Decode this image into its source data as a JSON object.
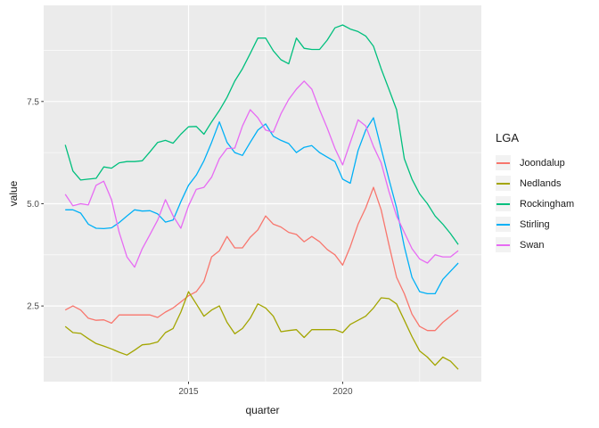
{
  "chart_data": {
    "type": "line",
    "title": "",
    "xlabel": "quarter",
    "ylabel": "value",
    "legend": {
      "title": "LGA",
      "position": "right"
    },
    "x_range": [
      2010.3,
      2024.5
    ],
    "y_range": [
      0.65,
      9.85
    ],
    "x_major_ticks": [
      {
        "label": "2015",
        "t": 2015
      },
      {
        "label": "2020",
        "t": 2020
      }
    ],
    "y_major_ticks": [
      {
        "label": "2.5",
        "v": 2.5
      },
      {
        "label": "5.0",
        "v": 5.0
      },
      {
        "label": "7.5",
        "v": 7.5
      }
    ],
    "x_minor": [
      2012.5,
      2017.5,
      2022.5
    ],
    "y_minor": [
      1.25,
      3.75,
      6.25,
      8.75
    ],
    "grid": true,
    "x_start": 2011.0,
    "x_step": 0.25,
    "series": [
      {
        "name": "Joondalup",
        "color": "#F8766D",
        "values": [
          2.4,
          2.5,
          2.4,
          2.2,
          2.15,
          2.16,
          2.08,
          2.28,
          2.28,
          2.28,
          2.28,
          2.28,
          2.22,
          2.35,
          2.45,
          2.6,
          2.75,
          2.85,
          3.1,
          3.7,
          3.85,
          4.2,
          3.92,
          3.92,
          4.18,
          4.36,
          4.7,
          4.5,
          4.43,
          4.3,
          4.25,
          4.07,
          4.2,
          4.07,
          3.88,
          3.75,
          3.5,
          3.95,
          4.5,
          4.9,
          5.4,
          4.85,
          4.0,
          3.2,
          2.8,
          2.3,
          2.0,
          1.9,
          1.9,
          2.1,
          2.25,
          2.4
        ]
      },
      {
        "name": "Nedlands",
        "color": "#A3A500",
        "values": [
          2.0,
          1.85,
          1.83,
          1.7,
          1.58,
          1.52,
          1.45,
          1.37,
          1.3,
          1.42,
          1.55,
          1.57,
          1.62,
          1.85,
          1.95,
          2.35,
          2.85,
          2.55,
          2.25,
          2.4,
          2.5,
          2.1,
          1.82,
          1.95,
          2.2,
          2.55,
          2.45,
          2.25,
          1.87,
          1.9,
          1.92,
          1.73,
          1.92,
          1.92,
          1.92,
          1.92,
          1.85,
          2.05,
          2.15,
          2.25,
          2.45,
          2.7,
          2.68,
          2.55,
          2.15,
          1.75,
          1.4,
          1.25,
          1.05,
          1.25,
          1.15,
          0.95
        ]
      },
      {
        "name": "Rockingham",
        "color": "#00BF7D",
        "values": [
          6.44,
          5.8,
          5.58,
          5.6,
          5.62,
          5.9,
          5.87,
          6.0,
          6.03,
          6.03,
          6.05,
          6.27,
          6.5,
          6.55,
          6.48,
          6.7,
          6.88,
          6.89,
          6.7,
          7.0,
          7.28,
          7.6,
          8.0,
          8.3,
          8.67,
          9.05,
          9.05,
          8.74,
          8.52,
          8.42,
          9.05,
          8.8,
          8.77,
          8.77,
          9.0,
          9.3,
          9.37,
          9.27,
          9.21,
          9.1,
          8.85,
          8.3,
          7.8,
          7.3,
          6.1,
          5.6,
          5.24,
          5.0,
          4.7,
          4.5,
          4.27,
          4.0
        ]
      },
      {
        "name": "Stirling",
        "color": "#00B0F6",
        "values": [
          4.85,
          4.85,
          4.77,
          4.5,
          4.4,
          4.39,
          4.41,
          4.54,
          4.7,
          4.85,
          4.82,
          4.83,
          4.75,
          4.55,
          4.6,
          5.05,
          5.45,
          5.7,
          6.05,
          6.5,
          7.0,
          6.5,
          6.25,
          6.18,
          6.5,
          6.8,
          6.95,
          6.65,
          6.55,
          6.47,
          6.25,
          6.38,
          6.42,
          6.25,
          6.14,
          6.03,
          5.6,
          5.5,
          6.3,
          6.8,
          7.1,
          6.35,
          5.6,
          4.9,
          3.95,
          3.2,
          2.85,
          2.8,
          2.8,
          3.15,
          3.35,
          3.55
        ]
      },
      {
        "name": "Swan",
        "color": "#E76BF3",
        "values": [
          5.23,
          4.95,
          5.0,
          4.97,
          5.45,
          5.55,
          5.1,
          4.3,
          3.7,
          3.45,
          3.9,
          4.25,
          4.6,
          5.1,
          4.7,
          4.4,
          4.95,
          5.35,
          5.4,
          5.65,
          6.1,
          6.35,
          6.36,
          6.9,
          7.3,
          7.1,
          6.8,
          6.75,
          7.2,
          7.55,
          7.8,
          8.0,
          7.8,
          7.3,
          6.85,
          6.35,
          5.95,
          6.5,
          7.05,
          6.9,
          6.4,
          6.0,
          5.3,
          4.7,
          4.3,
          3.9,
          3.65,
          3.55,
          3.75,
          3.7,
          3.7,
          3.85
        ]
      }
    ]
  },
  "colors": {
    "panel_background": "#EBEBEB",
    "gridline": "#FFFFFF",
    "legend_key_background": "#F2F2F2",
    "tick_text": "#4D4D4D",
    "axis_title_text": "#1a1a1a",
    "tick_mark": "#333333"
  }
}
